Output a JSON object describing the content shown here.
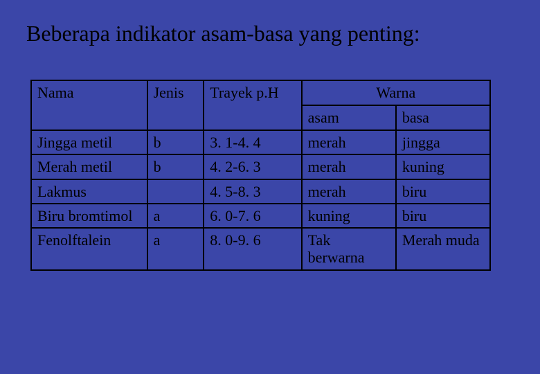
{
  "title": "Beberapa indikator asam-basa yang penting:",
  "headers": {
    "nama": "Nama",
    "jenis": "Jenis",
    "trayek": "Trayek p.H",
    "warna": "Warna",
    "asam": "asam",
    "basa": "basa"
  },
  "rows": [
    {
      "nama": "Jingga metil",
      "jenis": "b",
      "trayek": "3. 1-4. 4",
      "asam": "merah",
      "basa": "jingga"
    },
    {
      "nama": "Merah metil",
      "jenis": "b",
      "trayek": "4. 2-6. 3",
      "asam": "merah",
      "basa": "kuning"
    },
    {
      "nama": "Lakmus",
      "jenis": "",
      "trayek": "4. 5-8. 3",
      "asam": "merah",
      "basa": "biru"
    },
    {
      "nama": "Biru bromtimol",
      "jenis": "a",
      "trayek": "6. 0-7. 6",
      "asam": "kuning",
      "basa": "biru"
    },
    {
      "nama": "Fenolftalein",
      "jenis": "a",
      "trayek": "8. 0-9. 6",
      "asam": "Tak berwarna",
      "basa": "Merah muda"
    }
  ],
  "style": {
    "background": "#3b46a8",
    "border_color": "#000000",
    "text_color": "#000000",
    "title_fontsize": 32,
    "header_fontsize": 22,
    "cell_fontsize": 22,
    "font_family": "Times New Roman"
  }
}
